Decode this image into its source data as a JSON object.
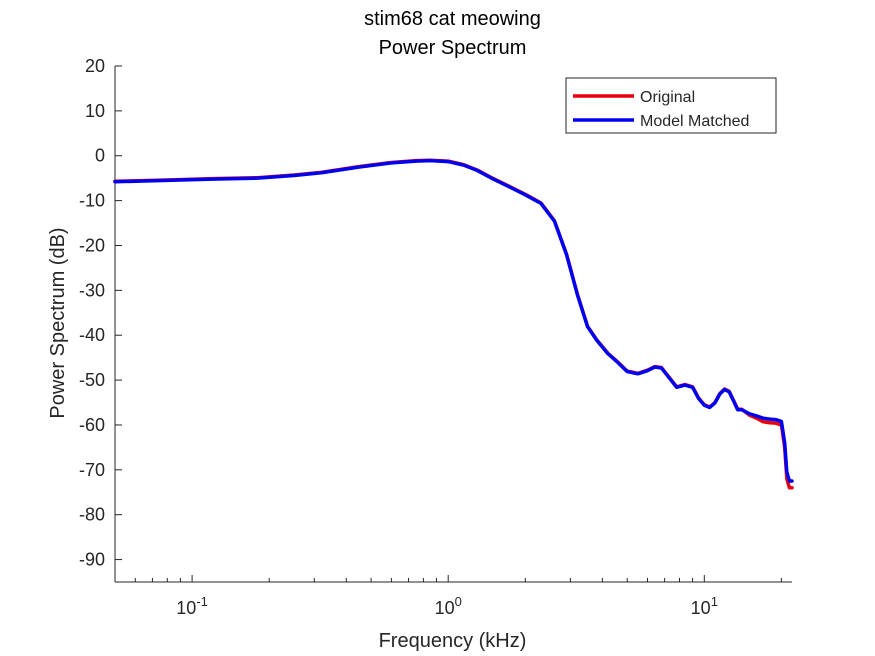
{
  "chart_data": {
    "type": "line",
    "title": "stim68 cat meowing",
    "subtitle": "Power Spectrum",
    "xlabel": "Frequency (kHz)",
    "ylabel": "Power Spectrum (dB)",
    "xscale": "log",
    "xlim": [
      0.05,
      22
    ],
    "ylim": [
      -95,
      20
    ],
    "yticks": [
      20,
      10,
      0,
      -10,
      -20,
      -30,
      -40,
      -50,
      -60,
      -70,
      -80,
      -90
    ],
    "xticks": [
      {
        "value": 0.1,
        "base": "10",
        "exp": "-1"
      },
      {
        "value": 1,
        "base": "10",
        "exp": "0"
      },
      {
        "value": 10,
        "base": "10",
        "exp": "1"
      }
    ],
    "grid": false,
    "legend": {
      "placement": "top-right"
    },
    "series": [
      {
        "name": "Original",
        "color": "#e8000b",
        "x": [
          0.05,
          0.08,
          0.12,
          0.18,
          0.25,
          0.32,
          0.45,
          0.6,
          0.75,
          0.85,
          1.0,
          1.15,
          1.3,
          1.5,
          1.7,
          2.0,
          2.3,
          2.6,
          2.9,
          3.2,
          3.5,
          3.8,
          4.2,
          4.6,
          5.0,
          5.5,
          6.0,
          6.4,
          6.8,
          7.2,
          7.8,
          8.4,
          9.0,
          9.5,
          10.0,
          10.5,
          11.0,
          11.5,
          12.0,
          12.5,
          13.0,
          13.5,
          14.0,
          15.0,
          16.0,
          17.0,
          18.0,
          19.0,
          20.0,
          20.6,
          21.0,
          21.5,
          22.0
        ],
        "y": [
          -5.7,
          -5.4,
          -5.1,
          -4.9,
          -4.3,
          -3.7,
          -2.4,
          -1.5,
          -1.1,
          -1.0,
          -1.2,
          -2.0,
          -3.2,
          -5.1,
          -6.6,
          -8.6,
          -10.5,
          -14.5,
          -22.0,
          -31.0,
          -38.0,
          -41.0,
          -44.0,
          -46.0,
          -48.0,
          -48.5,
          -47.8,
          -47.0,
          -47.2,
          -49.0,
          -51.5,
          -51.0,
          -51.5,
          -54.0,
          -55.5,
          -56.0,
          -55.0,
          -53.0,
          -52.0,
          -52.5,
          -54.5,
          -56.5,
          -56.5,
          -57.8,
          -58.5,
          -59.3,
          -59.5,
          -59.6,
          -60.0,
          -65.0,
          -72.0,
          -74.0,
          -74.0
        ]
      },
      {
        "name": "Model Matched",
        "color": "#0000ee",
        "x": [
          0.05,
          0.08,
          0.12,
          0.18,
          0.25,
          0.32,
          0.45,
          0.6,
          0.75,
          0.85,
          1.0,
          1.15,
          1.3,
          1.5,
          1.7,
          2.0,
          2.3,
          2.6,
          2.9,
          3.2,
          3.5,
          3.8,
          4.2,
          4.6,
          5.0,
          5.5,
          6.0,
          6.4,
          6.8,
          7.2,
          7.8,
          8.4,
          9.0,
          9.5,
          10.0,
          10.5,
          11.0,
          11.5,
          12.0,
          12.5,
          13.0,
          13.5,
          14.0,
          15.0,
          16.0,
          17.0,
          18.0,
          19.0,
          20.0,
          20.6,
          21.0,
          21.5,
          22.0
        ],
        "y": [
          -5.8,
          -5.5,
          -5.2,
          -5.0,
          -4.4,
          -3.8,
          -2.5,
          -1.6,
          -1.2,
          -1.1,
          -1.3,
          -2.1,
          -3.3,
          -5.2,
          -6.7,
          -8.7,
          -10.6,
          -14.6,
          -22.1,
          -31.1,
          -38.1,
          -41.1,
          -44.1,
          -46.1,
          -48.1,
          -48.6,
          -47.9,
          -47.1,
          -47.3,
          -49.1,
          -51.6,
          -51.1,
          -51.6,
          -54.1,
          -55.6,
          -56.1,
          -55.1,
          -53.1,
          -52.1,
          -52.6,
          -54.6,
          -56.6,
          -56.6,
          -57.5,
          -58.0,
          -58.5,
          -58.7,
          -58.8,
          -59.2,
          -64.0,
          -70.5,
          -72.5,
          -72.5
        ]
      }
    ]
  }
}
